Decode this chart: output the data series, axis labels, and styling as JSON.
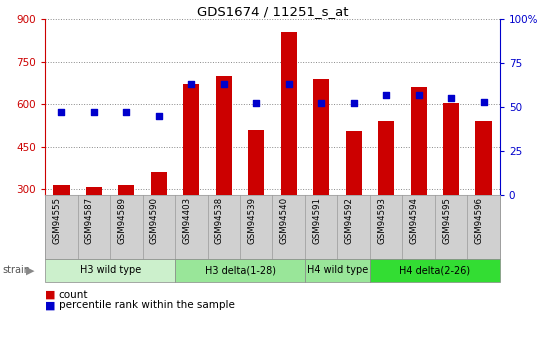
{
  "title": "GDS1674 / 11251_s_at",
  "categories": [
    "GSM94555",
    "GSM94587",
    "GSM94589",
    "GSM94590",
    "GSM94403",
    "GSM94538",
    "GSM94539",
    "GSM94540",
    "GSM94591",
    "GSM94592",
    "GSM94593",
    "GSM94594",
    "GSM94595",
    "GSM94596"
  ],
  "bar_values": [
    315,
    308,
    315,
    360,
    670,
    700,
    510,
    855,
    690,
    505,
    540,
    660,
    605,
    540
  ],
  "dot_values": [
    47,
    47,
    47,
    45,
    63,
    63,
    52,
    63,
    52,
    52,
    57,
    57,
    55,
    53
  ],
  "bar_color": "#cc0000",
  "dot_color": "#0000cc",
  "ylim_left": [
    280,
    900
  ],
  "ylim_right": [
    0,
    100
  ],
  "yticks_left": [
    300,
    450,
    600,
    750,
    900
  ],
  "yticks_right": [
    0,
    25,
    50,
    75,
    100
  ],
  "yticklabels_right": [
    "0",
    "25",
    "50",
    "75",
    "100%"
  ],
  "group_spans": [
    {
      "start": 0,
      "end": 3,
      "label": "H3 wild type",
      "color": "#ccf0cc"
    },
    {
      "start": 4,
      "end": 7,
      "label": "H3 delta(1-28)",
      "color": "#99e699"
    },
    {
      "start": 8,
      "end": 9,
      "label": "H4 wild type",
      "color": "#99e699"
    },
    {
      "start": 10,
      "end": 13,
      "label": "H4 delta(2-26)",
      "color": "#33dd33"
    }
  ],
  "strain_label": "strain",
  "legend_count": "count",
  "legend_percentile": "percentile rank within the sample",
  "bar_width": 0.5,
  "axis_color_left": "#cc0000",
  "axis_color_right": "#0000cc",
  "bg_color": "#ffffff",
  "ticklabel_bg": "#d0d0d0",
  "ticklabel_border": "#999999"
}
